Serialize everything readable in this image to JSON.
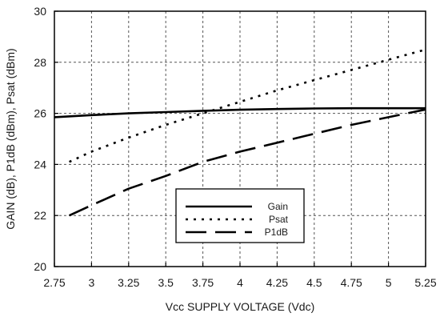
{
  "chart_data": {
    "type": "line",
    "title": "",
    "xlabel": "Vcc SUPPLY VOLTAGE (Vdc)",
    "ylabel": "GAIN (dB), P1dB (dBm), Psat (dBm)",
    "xlim": [
      2.75,
      5.25
    ],
    "ylim": [
      20,
      30
    ],
    "x_ticks": [
      2.75,
      3,
      3.25,
      3.5,
      3.75,
      4,
      4.25,
      4.5,
      4.75,
      5,
      5.25
    ],
    "x_tick_labels": [
      "2.75",
      "3",
      "3.25",
      "3.5",
      "3.75",
      "4",
      "4.25",
      "4.5",
      "4.75",
      "5",
      "5.25"
    ],
    "y_ticks": [
      20,
      22,
      24,
      26,
      28,
      30
    ],
    "y_tick_labels": [
      "20",
      "22",
      "24",
      "26",
      "28",
      "30"
    ],
    "grid": true,
    "grid_style": "dotted",
    "legend_position": "lower-right",
    "series": [
      {
        "name": "Gain",
        "style": "solid",
        "color": "#000000",
        "x": [
          2.75,
          3.0,
          3.25,
          3.5,
          3.75,
          4.0,
          4.25,
          4.5,
          4.75,
          5.0,
          5.25
        ],
        "y": [
          25.85,
          25.93,
          26.0,
          26.05,
          26.1,
          26.14,
          26.17,
          26.19,
          26.2,
          26.2,
          26.2
        ]
      },
      {
        "name": "Psat",
        "style": "dotted",
        "color": "#000000",
        "x": [
          2.85,
          3.0,
          3.25,
          3.5,
          3.75,
          4.0,
          4.25,
          4.5,
          4.75,
          5.0,
          5.25
        ],
        "y": [
          24.1,
          24.5,
          25.05,
          25.55,
          26.0,
          26.45,
          26.9,
          27.3,
          27.7,
          28.1,
          28.5
        ]
      },
      {
        "name": "P1dB",
        "style": "dashed",
        "color": "#000000",
        "x": [
          2.85,
          3.0,
          3.25,
          3.5,
          3.75,
          4.0,
          4.25,
          4.5,
          4.75,
          5.0,
          5.25
        ],
        "y": [
          22.0,
          22.4,
          23.05,
          23.55,
          24.1,
          24.5,
          24.85,
          25.2,
          25.55,
          25.85,
          26.15
        ]
      }
    ]
  }
}
